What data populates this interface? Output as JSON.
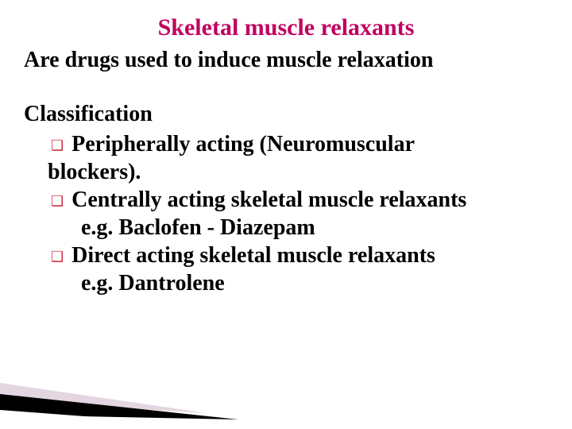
{
  "title": {
    "text": "Skeletal muscle relaxants",
    "color": "#c00060",
    "fontsize": 30
  },
  "subtitle": "Are drugs used to induce muscle relaxation",
  "section_heading": "Classification",
  "bullets": [
    {
      "marker_color": "#cc3344",
      "lead_bold": "Peripherally",
      "rest": " acting (Neuromuscular",
      "continuation": "blockers).",
      "example": null
    },
    {
      "marker_color": "#cc3344",
      "lead_bold": "Centrally",
      "rest": " acting skeletal muscle relaxants",
      "continuation": null,
      "example": "e.g. Baclofen - Diazepam"
    },
    {
      "marker_color": "#cc3344",
      "lead_bold": "Direct",
      "rest": " acting skeletal muscle relaxants",
      "continuation": null,
      "example": "e.g. Dantrolene"
    }
  ],
  "decoration": {
    "top_stripe": "#e4d6e0",
    "middle_stripe": "#000000",
    "bottom_stripe": "#ffffff"
  }
}
